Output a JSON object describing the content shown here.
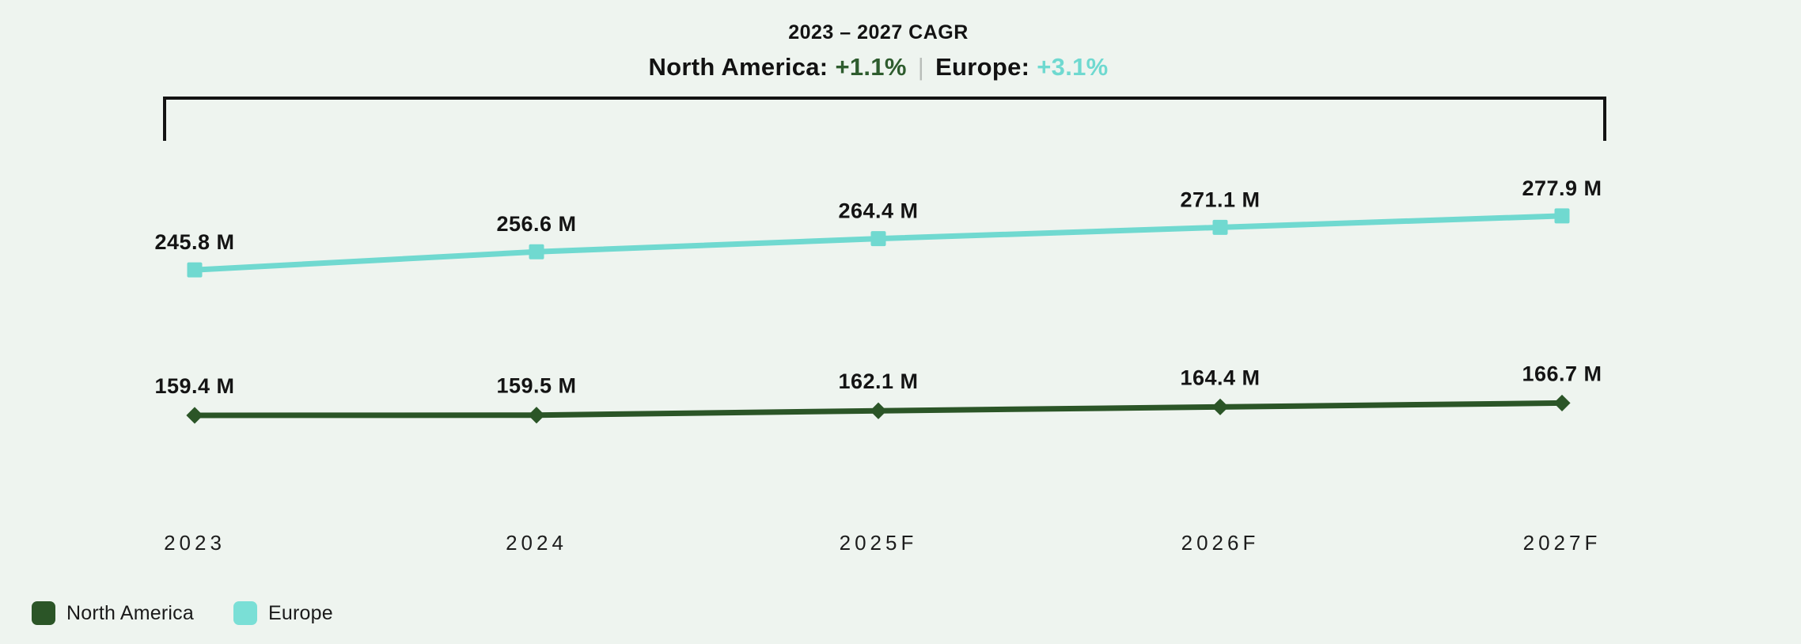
{
  "header": {
    "title": "2023 – 2027 CAGR",
    "subtitle": {
      "na_label": "North America:",
      "na_value": "+1.1%",
      "separator": "|",
      "eu_label": "Europe:",
      "eu_value": "+3.1%"
    }
  },
  "colors": {
    "background": "#eef4ef",
    "north_america": "#2b5527",
    "europe": "#70d9d0",
    "na_accent_text": "#2e5c2e",
    "eu_accent_text": "#6fd9d0",
    "separator_gray": "#b9beb9",
    "bracket": "#131313"
  },
  "chart_data": {
    "type": "line",
    "title": "2023 – 2027 CAGR",
    "categories": [
      "2023",
      "2024",
      "2025F",
      "2026F",
      "2027F"
    ],
    "series": [
      {
        "name": "North America",
        "color": "#2b5527",
        "marker": "diamond",
        "values": [
          159.4,
          159.5,
          162.1,
          164.4,
          166.7
        ],
        "labels": [
          "159.4 M",
          "159.5 M",
          "162.1 M",
          "164.4 M",
          "166.7 M"
        ],
        "cagr": "+1.1%"
      },
      {
        "name": "Europe",
        "color": "#70d9d0",
        "marker": "square",
        "values": [
          245.8,
          256.6,
          264.4,
          271.1,
          277.9
        ],
        "labels": [
          "245.8 M",
          "256.6 M",
          "264.4 M",
          "271.1 M",
          "277.9 M"
        ],
        "cagr": "+3.1%"
      }
    ],
    "unit": "M",
    "xlabel": "",
    "ylabel": "",
    "grid": false,
    "legend_position": "bottom-left"
  },
  "legend": {
    "items": [
      {
        "label": "North America",
        "color": "#2b5527"
      },
      {
        "label": "Europe",
        "color": "#7adfd6"
      }
    ]
  }
}
